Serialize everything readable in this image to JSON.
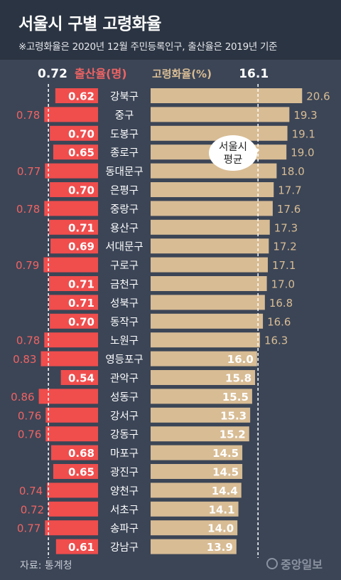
{
  "header": {
    "title": "서울시 구별 고령화율",
    "subtitle": "※고령화율은 2020년 12월 주민등록인구, 출산율은 2019년 기준"
  },
  "chart_data": {
    "type": "bar",
    "legend": {
      "birth_label": "출산율(명)",
      "birth_avg_label": "0.72",
      "aging_label": "고령화율(%)",
      "aging_avg_label": "16.1",
      "avg_callout": [
        "서울시",
        "평균"
      ]
    },
    "birth_average": 0.72,
    "aging_average": 16.1,
    "categories": [
      "강북구",
      "중구",
      "도봉구",
      "종로구",
      "동대문구",
      "은평구",
      "중랑구",
      "용산구",
      "서대문구",
      "구로구",
      "금천구",
      "성북구",
      "동작구",
      "노원구",
      "영등포구",
      "관악구",
      "성동구",
      "강서구",
      "강동구",
      "마포구",
      "광진구",
      "양천구",
      "서초구",
      "송파구",
      "강남구"
    ],
    "series": [
      {
        "name": "출산율(명)",
        "color": "#f04d4d",
        "values": [
          0.62,
          0.78,
          0.7,
          0.65,
          0.77,
          0.7,
          0.78,
          0.71,
          0.69,
          0.79,
          0.71,
          0.71,
          0.7,
          0.78,
          0.83,
          0.54,
          0.86,
          0.76,
          0.76,
          0.68,
          0.65,
          0.74,
          0.72,
          0.77,
          0.61
        ]
      },
      {
        "name": "고령화율(%)",
        "color": "#d8bc94",
        "values": [
          20.6,
          19.3,
          19.1,
          19.0,
          18.0,
          17.7,
          17.6,
          17.3,
          17.2,
          17.1,
          17.0,
          16.8,
          16.6,
          16.3,
          16.0,
          15.8,
          15.5,
          15.3,
          15.2,
          14.5,
          14.5,
          14.4,
          14.1,
          14.0,
          13.9
        ]
      }
    ]
  },
  "colors": {
    "background": "#3b4556",
    "header_bg": "#2b3442",
    "birth_bar": "#f04d4d",
    "aging_bar": "#d8bc94",
    "birth_label_outside": "#f06363",
    "aging_label_outside": "#d8bc94"
  },
  "footer": {
    "source": "자료: 통계청",
    "brand": "중앙일보"
  }
}
